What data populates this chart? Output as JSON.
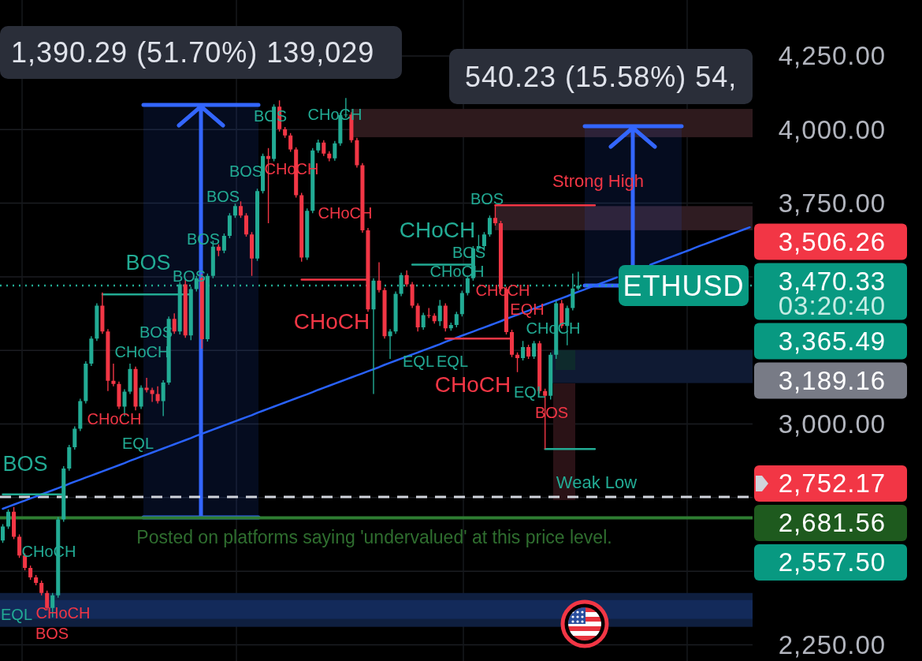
{
  "chart_data": {
    "type": "candlestick",
    "categories": [
      null,
      null,
      null,
      null,
      null,
      null,
      null,
      null,
      null,
      null,
      null,
      null,
      null,
      null,
      null,
      null,
      null,
      null,
      null,
      null,
      null,
      null,
      null,
      null,
      null,
      null,
      null,
      null,
      null,
      null,
      null,
      null,
      null,
      null,
      null,
      null,
      null,
      null,
      null,
      null,
      null,
      null,
      null,
      null,
      null,
      null,
      null,
      null,
      null,
      null,
      null,
      null,
      null,
      null,
      null,
      null,
      null,
      null,
      null,
      null,
      null,
      null,
      null,
      null,
      null,
      null,
      null,
      null,
      null,
      null,
      null,
      null,
      null,
      null,
      null,
      null,
      null,
      null,
      null,
      null,
      null,
      null,
      null,
      null,
      null,
      null,
      null,
      null,
      null,
      null,
      null,
      null,
      null,
      null,
      null,
      null,
      null,
      null,
      null,
      null,
      null,
      null,
      null,
      null,
      null,
      null,
      null,
      null,
      null,
      null,
      null,
      null,
      null,
      null,
      null,
      null,
      null,
      null,
      null,
      null,
      null,
      null,
      null,
      null,
      null,
      null,
      null,
      null,
      null,
      null,
      null,
      null,
      null,
      null,
      null,
      null
    ],
    "ohlc": [
      [
        2604,
        2660,
        2596,
        2652
      ],
      [
        2652,
        2710,
        2644,
        2702
      ],
      [
        2702,
        2718,
        2609,
        2617
      ],
      [
        2617,
        2625,
        2545,
        2553
      ],
      [
        2553,
        2561,
        2503,
        2511
      ],
      [
        2511,
        2519,
        2471,
        2479
      ],
      [
        2479,
        2487,
        2452,
        2460
      ],
      [
        2460,
        2468,
        2418,
        2426
      ],
      [
        2426,
        2434,
        2367,
        2375
      ],
      [
        2375,
        2426,
        2343,
        2418
      ],
      [
        2418,
        2684,
        2410,
        2676
      ],
      [
        2676,
        2857,
        2668,
        2849
      ],
      [
        2849,
        2929,
        2841,
        2921
      ],
      [
        2921,
        2992,
        2913,
        2984
      ],
      [
        2984,
        3086,
        2976,
        3078
      ],
      [
        3078,
        3213,
        3070,
        3205
      ],
      [
        3205,
        3298,
        3197,
        3290
      ],
      [
        3290,
        3410,
        3282,
        3402
      ],
      [
        3402,
        3447,
        3306,
        3314
      ],
      [
        3314,
        3322,
        3112,
        3147
      ],
      [
        3147,
        3205,
        3128,
        3136
      ],
      [
        3136,
        3144,
        3051,
        3059
      ],
      [
        3059,
        3118,
        3027,
        3110
      ],
      [
        3110,
        3205,
        3102,
        3187
      ],
      [
        3187,
        3195,
        3046,
        3059
      ],
      [
        3059,
        3131,
        3051,
        3123
      ],
      [
        3123,
        3157,
        3107,
        3115
      ],
      [
        3115,
        3123,
        3075,
        3102
      ],
      [
        3102,
        3128,
        3070,
        3078
      ],
      [
        3078,
        3149,
        3027,
        3141
      ],
      [
        3141,
        3365,
        3133,
        3357
      ],
      [
        3357,
        3376,
        3306,
        3314
      ],
      [
        3314,
        3482,
        3304,
        3474
      ],
      [
        3474,
        3490,
        3293,
        3301
      ],
      [
        3301,
        3466,
        3285,
        3458
      ],
      [
        3458,
        3503,
        3450,
        3495
      ],
      [
        3495,
        3509,
        3256,
        3288
      ],
      [
        3288,
        3511,
        3280,
        3503
      ],
      [
        3503,
        3623,
        3495,
        3602
      ],
      [
        3602,
        3610,
        3570,
        3589
      ],
      [
        3589,
        3647,
        3580,
        3639
      ],
      [
        3639,
        3716,
        3631,
        3708
      ],
      [
        3708,
        3748,
        3700,
        3740
      ],
      [
        3740,
        3756,
        3700,
        3708
      ],
      [
        3708,
        3716,
        3636,
        3644
      ],
      [
        3644,
        3652,
        3503,
        3562
      ],
      [
        3562,
        3799,
        3554,
        3791
      ],
      [
        3791,
        3918,
        3783,
        3910
      ],
      [
        3910,
        3937,
        3682,
        3900
      ],
      [
        3900,
        4086,
        3892,
        4078
      ],
      [
        4078,
        4099,
        3993,
        4001
      ],
      [
        4001,
        4009,
        3972,
        3980
      ],
      [
        3980,
        3988,
        3924,
        3932
      ],
      [
        3932,
        3940,
        3769,
        3777
      ],
      [
        3777,
        3785,
        3551,
        3565
      ],
      [
        3565,
        3732,
        3557,
        3724
      ],
      [
        3724,
        3937,
        3716,
        3929
      ],
      [
        3929,
        3966,
        3921,
        3956
      ],
      [
        3956,
        3964,
        3910,
        3918
      ],
      [
        3918,
        3926,
        3892,
        3902
      ],
      [
        3902,
        3961,
        3894,
        3953
      ],
      [
        3953,
        4057,
        3945,
        4049
      ],
      [
        4049,
        4107,
        4041,
        4051
      ],
      [
        4051,
        4059,
        3956,
        3964
      ],
      [
        3964,
        3972,
        3871,
        3879
      ],
      [
        3879,
        3886,
        3650,
        3658
      ],
      [
        3658,
        3666,
        3381,
        3389
      ],
      [
        3389,
        3495,
        3102,
        3487
      ],
      [
        3487,
        3549,
        3447,
        3455
      ],
      [
        3455,
        3463,
        3290,
        3298
      ],
      [
        3298,
        3322,
        3221,
        3314
      ],
      [
        3314,
        3450,
        3306,
        3442
      ],
      [
        3442,
        3514,
        3434,
        3506
      ],
      [
        3506,
        3522,
        3466,
        3474
      ],
      [
        3474,
        3482,
        3394,
        3402
      ],
      [
        3402,
        3410,
        3314,
        3328
      ],
      [
        3328,
        3378,
        3320,
        3370
      ],
      [
        3370,
        3394,
        3360,
        3368
      ],
      [
        3368,
        3376,
        3341,
        3349
      ],
      [
        3349,
        3421,
        3333,
        3402
      ],
      [
        3402,
        3410,
        3314,
        3325
      ],
      [
        3325,
        3344,
        3317,
        3336
      ],
      [
        3336,
        3381,
        3328,
        3373
      ],
      [
        3373,
        3453,
        3365,
        3445
      ],
      [
        3445,
        3503,
        3437,
        3495
      ],
      [
        3495,
        3604,
        3487,
        3596
      ],
      [
        3596,
        3642,
        3589,
        3604
      ],
      [
        3604,
        3652,
        3589,
        3644
      ],
      [
        3644,
        3708,
        3636,
        3700
      ],
      [
        3700,
        3743,
        3674,
        3682
      ],
      [
        3682,
        3690,
        3450,
        3458
      ],
      [
        3458,
        3466,
        3304,
        3312
      ],
      [
        3312,
        3320,
        3227,
        3235
      ],
      [
        3235,
        3243,
        3176,
        3224
      ],
      [
        3224,
        3282,
        3216,
        3261
      ],
      [
        3261,
        3269,
        3221,
        3229
      ],
      [
        3229,
        3282,
        3221,
        3274
      ],
      [
        3274,
        3282,
        3104,
        3112
      ],
      [
        3112,
        3120,
        2915,
        3096
      ],
      [
        3096,
        3243,
        3083,
        3235
      ],
      [
        3235,
        3418,
        3221,
        3410
      ],
      [
        3410,
        3421,
        3325,
        3333
      ],
      [
        3333,
        3402,
        3267,
        3394
      ],
      [
        3394,
        3511,
        3386,
        3460
      ],
      [
        3460,
        3517,
        3455,
        3470.33
      ],
      null,
      null,
      null,
      null,
      null,
      null,
      null,
      null,
      null,
      null,
      null,
      null,
      null,
      null,
      null,
      null,
      null,
      null,
      null,
      null,
      null,
      null,
      null,
      null,
      null,
      null,
      null,
      null,
      null,
      null,
      null
    ],
    "ylim": [
      2195,
      4440
    ],
    "yticks": [
      {
        "value": 2250,
        "label": "2,250.00"
      },
      {
        "value": 2500,
        "label": null
      },
      {
        "value": 2750,
        "label": null
      },
      {
        "value": 3000,
        "label": "3,000.00"
      },
      {
        "value": 3250,
        "label": null
      },
      {
        "value": 3500,
        "label": null
      },
      {
        "value": 3750,
        "label": "3,750.00"
      },
      {
        "value": 4000,
        "label": "4,000.00"
      },
      {
        "value": 4250,
        "label": "4,250.00"
      }
    ],
    "tick_labels": "y",
    "grid": true,
    "series": [
      {
        "type": "line",
        "color": "#2962ff",
        "values": [
          2712,
          2719,
          2726,
          2733,
          2740,
          2747,
          2754,
          2761,
          2768,
          2775,
          2782,
          2789,
          2797,
          2804,
          2811,
          2818,
          2825,
          2832,
          2839,
          2846,
          2853,
          2860,
          2867,
          2875,
          2882,
          2889,
          2896,
          2903,
          2910,
          2917,
          2924,
          2931,
          2938,
          2945,
          2952,
          2960,
          2967,
          2974,
          2981,
          2988,
          2995,
          3002,
          3009,
          3016,
          3023,
          3030,
          3038,
          3045,
          3052,
          3059,
          3066,
          3073,
          3080,
          3087,
          3094,
          3101,
          3108,
          3116,
          3123,
          3130,
          3137,
          3144,
          3151,
          3158,
          3165,
          3172,
          3179,
          3186,
          3193,
          3201,
          3208,
          3215,
          3222,
          3229,
          3236,
          3243,
          3250,
          3257,
          3264,
          3271,
          3279,
          3286,
          3293,
          3300,
          3307,
          3314,
          3321,
          3328,
          3335,
          3342,
          3349,
          3357,
          3364,
          3371,
          3378,
          3385,
          3392,
          3399,
          3406,
          3413,
          3420,
          3427,
          3434,
          3442,
          3449,
          3456,
          3463,
          3470,
          3477,
          3484,
          3491,
          3498,
          null,
          null,
          null,
          null,
          null,
          3541,
          3548,
          3555,
          3562,
          3569,
          3576,
          3583,
          3590,
          3598,
          3605,
          3612,
          3619,
          3626,
          3633,
          3640,
          3647,
          3654,
          3661,
          3668
        ]
      },
      {
        "type": "line",
        "color": "#22ab94",
        "values": [
          2761,
          2761,
          2761,
          2761,
          2761,
          2761,
          2761,
          2761,
          2761,
          2761,
          2761,
          2761,
          null,
          null,
          null,
          null,
          null,
          null,
          3440,
          3440,
          3440,
          3440,
          3440,
          3440,
          3440,
          3440,
          3440,
          3440,
          3440,
          3440,
          3440,
          3440,
          3440,
          3440,
          3440,
          null,
          null,
          null,
          null,
          null,
          null,
          null,
          null,
          null,
          null,
          null,
          null,
          null,
          null,
          null,
          null,
          null,
          null,
          null,
          null,
          null,
          null,
          null,
          null,
          null,
          null,
          null,
          null,
          null,
          null,
          null,
          null,
          null,
          null,
          null,
          null,
          null,
          null,
          null,
          3541,
          3541,
          3541,
          3541,
          3541,
          3541,
          3541,
          3541,
          3541,
          3541,
          3541,
          3541,
          null,
          null,
          null,
          null,
          null,
          null,
          null,
          null,
          null,
          null,
          null,
          null,
          2915,
          2915,
          2915,
          2915,
          2915,
          2915,
          2915,
          2915,
          2915,
          2915,
          null,
          null,
          null,
          null,
          null,
          null,
          null,
          null,
          null,
          null,
          null,
          null,
          null,
          null,
          null,
          null,
          null,
          null,
          null,
          null,
          null,
          null,
          null,
          null,
          null,
          null,
          null,
          null
        ]
      },
      {
        "type": "line",
        "color": "#f23645",
        "values": [
          null,
          null,
          null,
          null,
          null,
          null,
          null,
          null,
          null,
          null,
          null,
          null,
          null,
          null,
          null,
          null,
          null,
          null,
          null,
          null,
          null,
          null,
          null,
          null,
          null,
          null,
          null,
          null,
          null,
          null,
          null,
          null,
          null,
          null,
          null,
          null,
          null,
          null,
          null,
          null,
          null,
          null,
          null,
          null,
          null,
          null,
          null,
          null,
          null,
          null,
          null,
          null,
          null,
          null,
          3490,
          3490,
          3490,
          3490,
          3490,
          3490,
          3490,
          3490,
          3490,
          3490,
          3490,
          3490,
          3490,
          null,
          null,
          null,
          null,
          null,
          null,
          null,
          null,
          null,
          null,
          null,
          null,
          null,
          null,
          null,
          null,
          null,
          null,
          null,
          null,
          null,
          null,
          3743,
          3743,
          3743,
          3743,
          3743,
          3743,
          3743,
          3743,
          3743,
          3743,
          3743,
          3743,
          3743,
          3743,
          3743,
          3743,
          3743,
          3743,
          3743,
          null,
          null,
          null,
          null,
          null,
          null,
          null,
          null,
          null,
          null,
          null,
          null,
          null,
          null,
          null,
          null,
          null,
          null,
          null,
          null,
          null,
          null,
          null,
          null,
          null,
          null,
          null,
          null
        ]
      },
      {
        "type": "line",
        "color": "#f23645",
        "values": [
          null,
          null,
          null,
          null,
          null,
          null,
          null,
          null,
          null,
          null,
          null,
          null,
          null,
          null,
          null,
          null,
          null,
          null,
          null,
          null,
          null,
          null,
          null,
          null,
          null,
          null,
          null,
          null,
          null,
          null,
          null,
          null,
          null,
          null,
          null,
          null,
          null,
          null,
          null,
          null,
          null,
          null,
          null,
          null,
          null,
          null,
          null,
          null,
          null,
          null,
          null,
          null,
          null,
          null,
          null,
          null,
          null,
          null,
          null,
          null,
          null,
          null,
          null,
          null,
          null,
          null,
          null,
          null,
          null,
          null,
          null,
          null,
          null,
          null,
          null,
          null,
          null,
          null,
          null,
          null,
          3290,
          3290,
          3290,
          3290,
          3290,
          3290,
          3290,
          3290,
          3290,
          3290,
          3290,
          3290,
          3290,
          null,
          null,
          null,
          null,
          null,
          null,
          null,
          null,
          null,
          null,
          null,
          null,
          null,
          null,
          null,
          null,
          null,
          null,
          null,
          null,
          null,
          null,
          null,
          null,
          null,
          null,
          null,
          null,
          null,
          null,
          null,
          null,
          null,
          null,
          null,
          null,
          null,
          null,
          null,
          null,
          null,
          null,
          null
        ]
      }
    ],
    "ref_lines": [
      {
        "axis": "y",
        "value": 3470.33,
        "label": "3,470.33",
        "color": "#22ab94",
        "line_style": "dotted"
      },
      {
        "axis": "y",
        "value": 2752.17,
        "label": "2,752.17",
        "color": "#d1d4dc",
        "line_style": "dashed"
      },
      {
        "axis": "y",
        "value": 2681.56,
        "label": "2,681.56",
        "color": "#2e7d32",
        "line_style": "solid"
      }
    ],
    "bands": [
      {
        "axis": "y",
        "from": 3974,
        "to": 4070,
        "color": "#2e1a1d"
      },
      {
        "axis": "y",
        "from": 3658,
        "to": 3740,
        "color": "#2f1c22"
      },
      {
        "axis": "y",
        "from": 3139,
        "to": 3251,
        "color": "#0f1a33"
      },
      {
        "axis": "y",
        "from": 2311,
        "to": 2426,
        "color": "#0f1f3f"
      },
      {
        "axis": "y",
        "from": 2338,
        "to": 2402,
        "color": "#132a5a"
      }
    ],
    "annotations": [
      "1,390.29 (51.70%) 139,029",
      "540.23 (15.58%) 54,",
      "BOS",
      "CHoCH",
      "BOS",
      "CHoCH",
      "BOS",
      "CHoCH",
      "BOS",
      "BOS",
      "BOS",
      "CHoCH",
      "BOS",
      "CHoCH",
      "CHoCH",
      "EQL",
      "BOS",
      "CHoCH",
      "EQL",
      "CHoCH",
      "BOS",
      "Strong High",
      "BOS",
      "CHoCH",
      "BOS",
      "CHoCH",
      "CHoCH",
      "EQH",
      "CHoCH",
      "EQL",
      "EQL",
      "CHoCH",
      "EQL",
      "BOS",
      "Weak Low",
      "Posted on platforms saying 'undervalued' at this price level.",
      {
        "text": "ETHUSD",
        "y": 3470.33
      },
      "03:20:40",
      "3,506.26",
      "3,365.49",
      "3,189.16",
      "2,557.50"
    ]
  }
}
